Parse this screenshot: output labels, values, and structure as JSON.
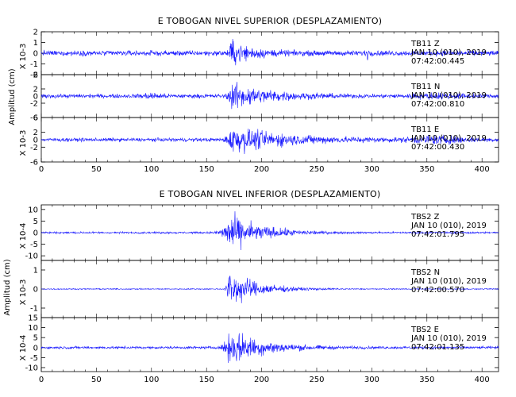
{
  "chart_data": [
    {
      "type": "line",
      "title": "E TOBOGAN NIVEL SUPERIOR (DESPLAZAMIENTO)",
      "ylabel": "Amplitud (cm)",
      "xlim": [
        0,
        415
      ],
      "x_ticks": [
        "0",
        "50",
        "100",
        "150",
        "200",
        "250",
        "300",
        "350",
        "400"
      ],
      "grid": false,
      "panels": [
        {
          "station": "TB11",
          "component": "Z",
          "date": "JAN 10 (010), 2019",
          "time": "07:42:00.445",
          "scale": "X 10-3",
          "ylim": [
            -2,
            2
          ],
          "y_ticks": [
            {
              "v": -2,
              "t": "-2"
            },
            {
              "v": -1,
              "t": "-1"
            },
            {
              "v": 0,
              "t": "0"
            },
            {
              "v": 1,
              "t": "1"
            },
            {
              "v": 2,
              "t": "2"
            }
          ],
          "event_start": 168,
          "peak_time": 172,
          "pre_amp": 0.35,
          "peak_amp": 1.8,
          "coda_amp": 0.3,
          "decay": 20,
          "swells": [
            {
              "at": 296,
              "amp": 0.6,
              "width": 2
            }
          ]
        },
        {
          "station": "TB11",
          "component": "N",
          "date": "JAN 10 (010), 2019",
          "time": "07:42:00.810",
          "scale": "",
          "ylim": [
            -6,
            6
          ],
          "y_ticks": [
            {
              "v": -6,
              "t": "-6"
            },
            {
              "v": -2,
              "t": "-2"
            },
            {
              "v": 0,
              "t": "0"
            },
            {
              "v": 2,
              "t": "2"
            },
            {
              "v": 6,
              "t": "6"
            }
          ],
          "event_start": 166,
          "peak_time": 173,
          "pre_amp": 0.8,
          "peak_amp": 5.6,
          "coda_amp": 0.7,
          "decay": 35,
          "swells": [
            {
              "at": 100,
              "amp": 0.7,
              "width": 10
            },
            {
              "at": 360,
              "amp": 0.6,
              "width": 30
            }
          ]
        },
        {
          "station": "TB11",
          "component": "E",
          "date": "JAN 10 (010), 2019",
          "time": "07:42:00.430",
          "scale": "X 10-3",
          "ylim": [
            -6,
            6
          ],
          "y_ticks": [
            {
              "v": -6,
              "t": "-6"
            },
            {
              "v": -2,
              "t": "-2"
            },
            {
              "v": 0,
              "t": "0"
            },
            {
              "v": 2,
              "t": "2"
            },
            {
              "v": 6,
              "t": "6"
            }
          ],
          "event_start": 164,
          "peak_time": 173,
          "pre_amp": 0.7,
          "peak_amp": 5.6,
          "coda_amp": 0.8,
          "decay": 45,
          "swells": [
            {
              "at": 360,
              "amp": 1.2,
              "width": 30
            }
          ]
        }
      ]
    },
    {
      "type": "line",
      "title": "E TOBOGAN NIVEL INFERIOR (DESPLAZAMIENTO)",
      "ylabel": "Amplitud (cm)",
      "xlim": [
        0,
        415
      ],
      "x_ticks": [
        "0",
        "50",
        "100",
        "150",
        "200",
        "250",
        "300",
        "350",
        "400"
      ],
      "grid": false,
      "panels": [
        {
          "station": "TBS2",
          "component": "Z",
          "date": "JAN 10 (010), 2019",
          "time": "07:42:01.795",
          "scale": "X 10-4",
          "ylim": [
            -12,
            12
          ],
          "y_ticks": [
            {
              "v": -10,
              "t": "-10"
            },
            {
              "v": -5,
              "t": "-5"
            },
            {
              "v": 0,
              "t": "0"
            },
            {
              "v": 5,
              "t": "5"
            },
            {
              "v": 10,
              "t": "10"
            }
          ],
          "event_start": 155,
          "peak_time": 172,
          "pre_amp": 0.6,
          "peak_amp": 11,
          "coda_amp": 0.4,
          "decay": 30,
          "swells": []
        },
        {
          "station": "TBS2",
          "component": "N",
          "date": "JAN 10 (010), 2019",
          "time": "07:42:00.570",
          "scale": "X 10-3",
          "ylim": [
            -1.5,
            1.5
          ],
          "y_ticks": [
            {
              "v": -1,
              "t": "-1"
            },
            {
              "v": 0,
              "t": "0"
            },
            {
              "v": 1,
              "t": "1"
            }
          ],
          "event_start": 165,
          "peak_time": 171,
          "pre_amp": 0.04,
          "peak_amp": 1.4,
          "coda_amp": 0.03,
          "decay": 25,
          "swells": []
        },
        {
          "station": "TBS2",
          "component": "E",
          "date": "JAN 10 (010), 2019",
          "time": "07:42:01.135",
          "scale": "X 10-4",
          "ylim": [
            -12,
            15
          ],
          "y_ticks": [
            {
              "v": -10,
              "t": "-10"
            },
            {
              "v": -5,
              "t": "-5"
            },
            {
              "v": 0,
              "t": "0"
            },
            {
              "v": 5,
              "t": "5"
            },
            {
              "v": 10,
              "t": "10"
            },
            {
              "v": 15,
              "t": "15"
            }
          ],
          "event_start": 160,
          "peak_time": 172,
          "pre_amp": 0.9,
          "peak_amp": 13,
          "coda_amp": 0.8,
          "decay": 30,
          "swells": []
        }
      ]
    }
  ],
  "colors": {
    "trace": "#1a1aff",
    "axis": "#000000",
    "background": "#ffffff"
  }
}
